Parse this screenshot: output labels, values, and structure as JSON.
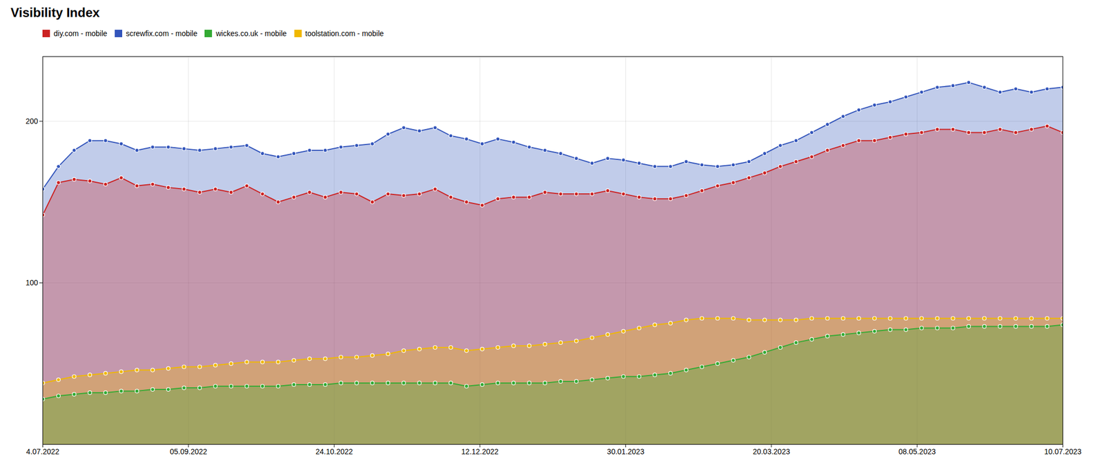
{
  "chart_data": {
    "type": "area",
    "title": "Visibility Index",
    "xlim": [
      0,
      1
    ],
    "xticks": [
      {
        "value": 0,
        "label": "4.07.2022"
      },
      {
        "value": 0.14285714285714285,
        "label": "05.09.2022"
      },
      {
        "value": 0.2857142857142857,
        "label": "24.10.2022"
      },
      {
        "value": 0.42857142857142855,
        "label": "12.12.2022"
      },
      {
        "value": 0.5714285714285714,
        "label": "30.01.2023"
      },
      {
        "value": 0.7142857142857143,
        "label": "20.03.2023"
      },
      {
        "value": 0.8571428571428571,
        "label": "08.05.2023"
      },
      {
        "value": 1,
        "label": "10.07.2023"
      }
    ],
    "ylim": [
      0,
      240
    ],
    "yticks": [
      100,
      200
    ],
    "grid": true,
    "legend": "upper left",
    "marker": "o",
    "series": [
      {
        "name": "diy.com - mobile",
        "color": "#cc2222",
        "values": [
          142,
          162,
          164,
          163,
          161,
          165,
          160,
          161,
          159,
          158,
          156,
          158,
          156,
          160,
          155,
          150,
          153,
          156,
          153,
          156,
          155,
          150,
          155,
          154,
          155,
          158,
          153,
          150,
          148,
          152,
          153,
          153,
          156,
          155,
          155,
          155,
          157,
          155,
          153,
          152,
          152,
          154,
          157,
          160,
          162,
          165,
          168,
          172,
          175,
          178,
          182,
          185,
          188,
          188,
          190,
          192,
          193,
          195,
          195,
          193,
          193,
          195,
          193,
          195,
          197,
          193
        ]
      },
      {
        "name": "screwfix.com - mobile",
        "color": "#3355bb",
        "values": [
          158,
          172,
          182,
          188,
          188,
          186,
          182,
          184,
          184,
          183,
          182,
          183,
          184,
          185,
          180,
          178,
          180,
          182,
          182,
          184,
          185,
          186,
          192,
          196,
          194,
          196,
          191,
          189,
          186,
          189,
          187,
          184,
          182,
          180,
          177,
          174,
          177,
          176,
          174,
          172,
          172,
          175,
          173,
          172,
          173,
          175,
          180,
          185,
          188,
          193,
          198,
          203,
          207,
          210,
          212,
          215,
          218,
          221,
          222,
          224,
          221,
          218,
          220,
          218,
          220,
          221
        ]
      },
      {
        "name": "wickes.co.uk - mobile",
        "color": "#33aa33",
        "values": [
          28,
          30,
          31,
          32,
          32,
          33,
          33,
          34,
          34,
          35,
          35,
          36,
          36,
          36,
          36,
          36,
          37,
          37,
          37,
          38,
          38,
          38,
          38,
          38,
          38,
          38,
          38,
          36,
          37,
          38,
          38,
          38,
          38,
          39,
          39,
          40,
          41,
          42,
          42,
          43,
          44,
          46,
          48,
          50,
          52,
          54,
          57,
          60,
          63,
          65,
          67,
          68,
          69,
          70,
          71,
          71,
          72,
          72,
          72,
          73,
          73,
          73,
          73,
          73,
          73,
          74
        ]
      },
      {
        "name": "toolstation.com - mobile",
        "color": "#f0b800",
        "values": [
          38,
          40,
          42,
          43,
          44,
          45,
          46,
          46,
          47,
          48,
          48,
          49,
          50,
          51,
          51,
          51,
          52,
          53,
          53,
          54,
          54,
          55,
          56,
          58,
          59,
          60,
          60,
          58,
          59,
          60,
          61,
          61,
          62,
          63,
          64,
          66,
          68,
          70,
          72,
          74,
          75,
          77,
          78,
          78,
          78,
          77,
          77,
          77,
          77,
          78,
          78,
          78,
          78,
          78,
          78,
          78,
          78,
          78,
          78,
          78,
          78,
          78,
          78,
          78,
          78,
          78
        ]
      }
    ]
  }
}
